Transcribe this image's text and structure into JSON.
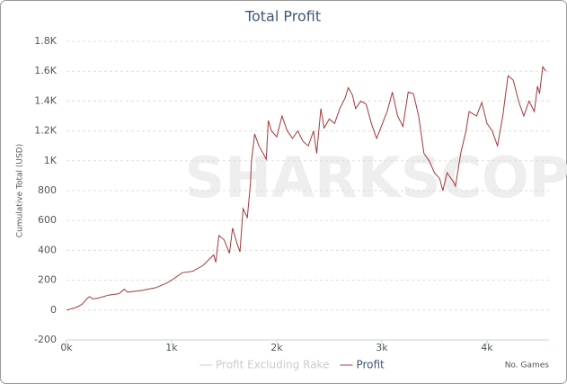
{
  "chart_data": {
    "type": "line",
    "title": "Total Profit",
    "watermark": "SHARKSCOPE",
    "x_label": "No. Games",
    "y_label": "Cumulative Total (USD)",
    "x": [
      0,
      100,
      150,
      200,
      220,
      250,
      300,
      400,
      500,
      550,
      580,
      700,
      850,
      950,
      1000,
      1100,
      1200,
      1300,
      1400,
      1420,
      1450,
      1500,
      1550,
      1580,
      1620,
      1650,
      1680,
      1720,
      1750,
      1760,
      1790,
      1830,
      1870,
      1900,
      1920,
      1950,
      2000,
      2050,
      2100,
      2150,
      2200,
      2250,
      2300,
      2350,
      2380,
      2420,
      2450,
      2500,
      2550,
      2600,
      2650,
      2680,
      2720,
      2750,
      2800,
      2850,
      2900,
      2950,
      3050,
      3100,
      3150,
      3200,
      3250,
      3300,
      3350,
      3400,
      3450,
      3500,
      3550,
      3580,
      3620,
      3680,
      3700,
      3750,
      3800,
      3830,
      3900,
      3950,
      4000,
      4050,
      4100,
      4150,
      4200,
      4250,
      4300,
      4350,
      4400,
      4450,
      4480,
      4500,
      4530,
      4560
    ],
    "series": [
      {
        "name": "Profit Excluding Rake",
        "color": "#cccccc",
        "visible": false
      },
      {
        "name": "Profit",
        "color": "#a0393a",
        "visible": true,
        "values": [
          0,
          20,
          40,
          80,
          90,
          75,
          80,
          100,
          110,
          140,
          120,
          130,
          150,
          180,
          200,
          250,
          260,
          300,
          370,
          320,
          500,
          470,
          380,
          550,
          450,
          390,
          680,
          620,
          850,
          1000,
          1180,
          1100,
          1050,
          1010,
          1270,
          1200,
          1160,
          1300,
          1200,
          1150,
          1200,
          1130,
          1100,
          1200,
          1050,
          1350,
          1220,
          1280,
          1250,
          1350,
          1420,
          1490,
          1440,
          1350,
          1400,
          1380,
          1250,
          1150,
          1330,
          1460,
          1300,
          1230,
          1460,
          1450,
          1300,
          1050,
          1000,
          920,
          880,
          800,
          920,
          860,
          830,
          1050,
          1200,
          1330,
          1300,
          1390,
          1250,
          1200,
          1100,
          1300,
          1570,
          1540,
          1400,
          1300,
          1400,
          1330,
          1500,
          1450,
          1630,
          1600
        ]
      }
    ],
    "xlim": [
      0,
      4590
    ],
    "xticks": [
      {
        "value": 0,
        "label": "0k"
      },
      {
        "value": 1000,
        "label": "1k"
      },
      {
        "value": 2000,
        "label": "2k"
      },
      {
        "value": 3000,
        "label": "3k"
      },
      {
        "value": 4000,
        "label": "4k"
      }
    ],
    "ylim": [
      -200,
      1800
    ],
    "yticks": [
      -200,
      0,
      200,
      400,
      600,
      800,
      {
        "value": 1000,
        "label": "1K"
      },
      {
        "value": 1200,
        "label": "1.2K"
      },
      {
        "value": 1400,
        "label": "1.4K"
      },
      {
        "value": 1600,
        "label": "1.6K"
      },
      {
        "value": 1800,
        "label": "1.8K"
      }
    ],
    "grid": true,
    "legend": "bottom"
  }
}
